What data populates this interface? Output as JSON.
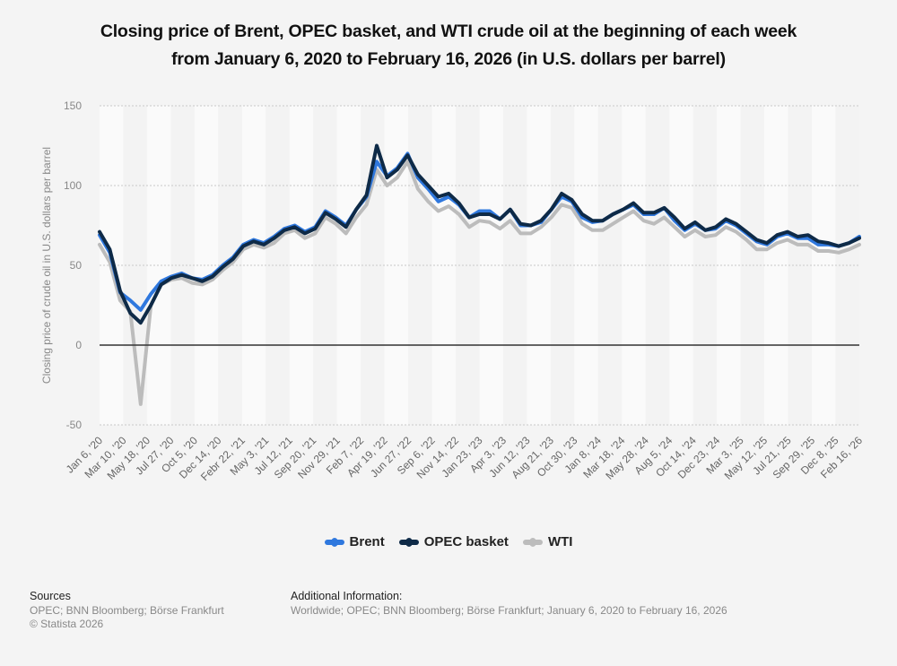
{
  "title_line1": "Closing price of Brent, OPEC basket, and WTI crude oil at the beginning of each week",
  "title_line2": "from January 6, 2020 to February 16, 2026 (in U.S. dollars per barrel)",
  "legend": [
    {
      "name": "Brent",
      "color": "#2f78de"
    },
    {
      "name": "OPEC basket",
      "color": "#0e2a47"
    },
    {
      "name": "WTI",
      "color": "#bcbcbc"
    }
  ],
  "footer": {
    "sources_heading": "Sources",
    "sources_text": "OPEC; BNN Bloomberg; Börse Frankfurt",
    "copyright": "© Statista 2026",
    "additional_heading": "Additional Information:",
    "additional_text": "Worldwide; OPEC; BNN Bloomberg; Börse Frankfurt; January 6, 2020 to February 16, 2026"
  },
  "chart_data": {
    "type": "line",
    "title": "Closing price of Brent, OPEC basket, and WTI crude oil at the beginning of each week from January 6, 2020 to February 16, 2026 (in U.S. dollars per barrel)",
    "xlabel": "",
    "ylabel": "Closing price of crude oil in U.S. dollars per barrel",
    "ylim": [
      -50,
      150
    ],
    "yticks": [
      -50,
      0,
      50,
      100,
      150
    ],
    "grid": true,
    "legend_position": "bottom",
    "x_tick_labels": [
      "Jan 6, '20",
      "Mar 10, '20",
      "May 18, '20",
      "Jul 27, '20",
      "Oct 5, '20",
      "Dec 14, '20",
      "Febr 22, '21",
      "May 3, '21",
      "Jul 12, '21",
      "Sep 20, '21",
      "Nov 29, '21",
      "Feb 7, '22",
      "Apr 19, '22",
      "Jun 27, '22",
      "Sep 6, '22",
      "Nov 14, '22",
      "Jan 23, '23",
      "Apr 3, '23",
      "Jun 12, '23",
      "Aug 21, '23",
      "Oct 30, '23",
      "Jan 8, '24",
      "Mar 18, '24",
      "May 28, '24",
      "Aug 5, '24",
      "Oct 14, '24",
      "Dec 23, '24",
      "Mar 3, '25",
      "May 12, '25",
      "Jul 21, '25",
      "Sep 29, '25",
      "Dec 8, '25",
      "Feb 16, '26"
    ],
    "x": [
      "Jan '20",
      "Feb '20",
      "Mar '20",
      "Apr '20 (1)",
      "Apr 20 '20",
      "May '20",
      "Jun '20",
      "Jul '20",
      "Aug '20",
      "Sep '20",
      "Oct '20",
      "Nov '20",
      "Dec '20",
      "Jan '21",
      "Feb '21",
      "Mar '21",
      "Apr '21",
      "May '21",
      "Jun '21",
      "Jul '21",
      "Aug '21",
      "Sep '21",
      "Oct '21",
      "Nov '21",
      "Dec '21",
      "Jan '22",
      "Feb '22",
      "Mar '22",
      "Apr '22",
      "May '22",
      "Jun '22",
      "Jul '22",
      "Aug '22",
      "Sep '22",
      "Oct '22",
      "Nov '22",
      "Dec '22",
      "Jan '23",
      "Feb '23",
      "Mar '23",
      "Apr '23",
      "May '23",
      "Jun '23",
      "Jul '23",
      "Aug '23",
      "Sep '23",
      "Oct '23",
      "Nov '23",
      "Dec '23",
      "Jan '24",
      "Feb '24",
      "Mar '24",
      "Apr '24",
      "May '24",
      "Jun '24",
      "Jul '24",
      "Aug '24",
      "Sep '24",
      "Oct '24",
      "Nov '24",
      "Dec '24",
      "Jan '25",
      "Feb '25",
      "Mar '25",
      "Apr '25",
      "May '25",
      "Jun '25",
      "Jul '25",
      "Aug '25",
      "Sep '25",
      "Oct '25",
      "Nov '25",
      "Dec '25",
      "Jan '26",
      "Feb '26"
    ],
    "series": [
      {
        "name": "Brent",
        "values": [
          69,
          58,
          33,
          28,
          22,
          32,
          40,
          43,
          45,
          42,
          41,
          44,
          50,
          55,
          63,
          66,
          64,
          68,
          73,
          75,
          71,
          74,
          84,
          80,
          75,
          85,
          93,
          115,
          106,
          111,
          120,
          105,
          98,
          90,
          93,
          88,
          80,
          84,
          84,
          79,
          85,
          75,
          75,
          77,
          85,
          93,
          90,
          80,
          77,
          78,
          82,
          85,
          88,
          82,
          82,
          86,
          78,
          72,
          76,
          72,
          73,
          78,
          75,
          70,
          65,
          63,
          68,
          70,
          67,
          67,
          63,
          63,
          62,
          64,
          68
        ]
      },
      {
        "name": "OPEC basket",
        "values": [
          71,
          60,
          34,
          20,
          14,
          25,
          38,
          42,
          44,
          42,
          40,
          43,
          49,
          54,
          62,
          65,
          63,
          67,
          72,
          74,
          70,
          73,
          83,
          79,
          74,
          85,
          94,
          125,
          105,
          110,
          119,
          107,
          100,
          93,
          95,
          89,
          80,
          82,
          82,
          79,
          85,
          76,
          75,
          78,
          85,
          95,
          91,
          82,
          78,
          78,
          82,
          85,
          89,
          83,
          83,
          86,
          80,
          73,
          77,
          72,
          74,
          79,
          76,
          71,
          66,
          64,
          69,
          71,
          68,
          69,
          65,
          64,
          62,
          64,
          67
        ]
      },
      {
        "name": "WTI",
        "values": [
          63,
          52,
          28,
          21,
          -37,
          25,
          38,
          41,
          42,
          39,
          38,
          41,
          47,
          52,
          60,
          63,
          61,
          64,
          70,
          72,
          67,
          70,
          80,
          76,
          70,
          80,
          88,
          110,
          100,
          105,
          115,
          98,
          90,
          84,
          87,
          82,
          74,
          78,
          77,
          73,
          78,
          70,
          70,
          74,
          80,
          88,
          86,
          76,
          72,
          72,
          76,
          80,
          84,
          78,
          76,
          80,
          74,
          68,
          72,
          68,
          69,
          74,
          71,
          66,
          60,
          60,
          64,
          66,
          63,
          63,
          59,
          59,
          58,
          60,
          63
        ]
      }
    ]
  }
}
